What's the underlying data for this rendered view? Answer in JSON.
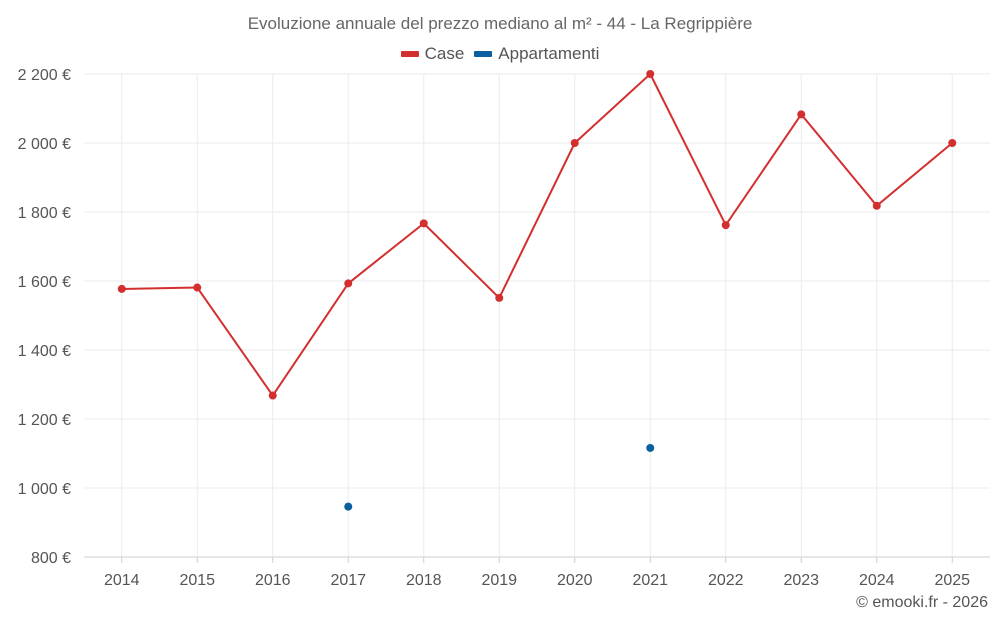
{
  "chart_data": {
    "type": "line",
    "title": "Evoluzione annuale del prezzo mediano al m² - 44 - La Regrippière",
    "categories": [
      "2014",
      "2015",
      "2016",
      "2017",
      "2018",
      "2019",
      "2020",
      "2021",
      "2022",
      "2023",
      "2024",
      "2025"
    ],
    "series": [
      {
        "name": "Case",
        "color": "#d32f2f",
        "values": [
          1577,
          1581,
          1268,
          1593,
          1767,
          1551,
          2000,
          2200,
          1762,
          2083,
          1818,
          2000
        ]
      },
      {
        "name": "Appartamenti",
        "color": "#0a5f9e",
        "values": [
          null,
          null,
          null,
          946,
          null,
          null,
          null,
          1116,
          null,
          null,
          null,
          null
        ]
      }
    ],
    "ylim": [
      800,
      2200
    ],
    "yticks": [
      800,
      1000,
      1200,
      1400,
      1600,
      1800,
      2000,
      2200
    ],
    "ytick_labels": [
      "800 €",
      "1 000 €",
      "1 200 €",
      "1 400 €",
      "1 600 €",
      "1 800 €",
      "2 000 €",
      "2 200 €"
    ],
    "xlabel": "",
    "ylabel": "",
    "grid": true,
    "legend_position": "top-center"
  },
  "credit": "© emooki.fr - 2026"
}
